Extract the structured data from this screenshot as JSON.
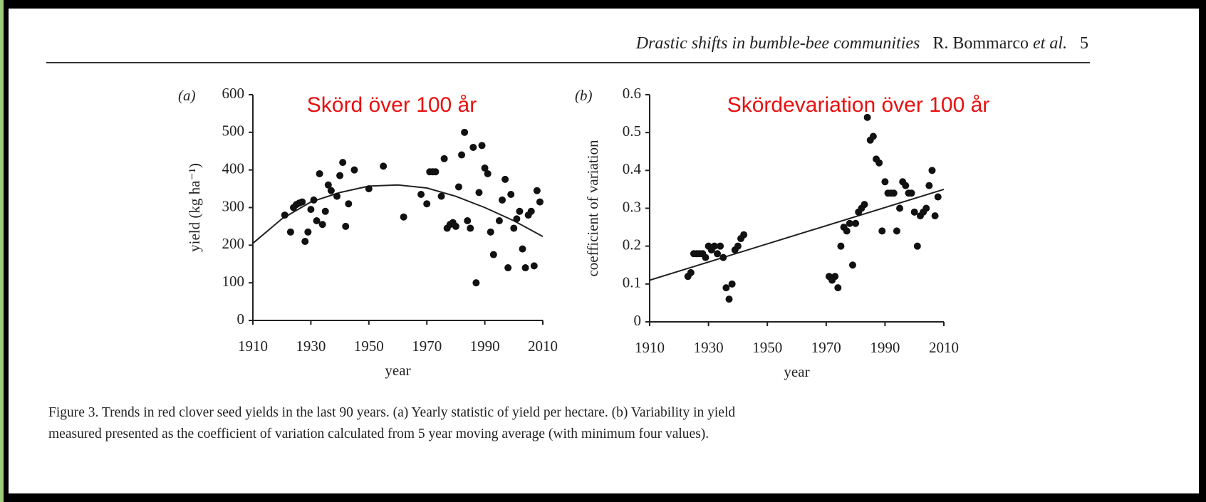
{
  "header": {
    "title": "Drastic shifts in bumble-bee communities",
    "author": "R. Bommarco",
    "etal": "et al.",
    "page": "5"
  },
  "caption": [
    "Figure 3. Trends in red clover seed yields in the last 90 years. (a) Yearly statistic of yield per hectare. (b) Variability in yield",
    "measured presented as the coefficient of variation calculated from 5 year moving average (with minimum four values)."
  ],
  "chart_data": [
    {
      "type": "scatter",
      "panel": "(a)",
      "title": "Skörd över 100 år",
      "title_color": "#e81010",
      "color": "#111",
      "xlabel": "year",
      "ylabel": "yield (kg ha⁻¹)",
      "xlim": [
        1910,
        2010
      ],
      "xticks": [
        1910,
        1930,
        1950,
        1970,
        1990,
        2010
      ],
      "ylim": [
        0,
        600
      ],
      "yticks": [
        0,
        100,
        200,
        300,
        400,
        500,
        600
      ],
      "x": [
        1921,
        1923,
        1924,
        1925,
        1926,
        1927,
        1928,
        1929,
        1930,
        1931,
        1932,
        1933,
        1934,
        1935,
        1936,
        1937,
        1939,
        1940,
        1941,
        1942,
        1943,
        1945,
        1950,
        1955,
        1962,
        1968,
        1970,
        1971,
        1972,
        1973,
        1975,
        1976,
        1977,
        1978,
        1979,
        1980,
        1981,
        1982,
        1983,
        1984,
        1985,
        1986,
        1987,
        1988,
        1989,
        1990,
        1991,
        1992,
        1993,
        1995,
        1996,
        1997,
        1998,
        1999,
        2000,
        2001,
        2002,
        2003,
        2004,
        2005,
        2006,
        2007,
        2008,
        2009
      ],
      "values": [
        280,
        235,
        300,
        308,
        312,
        315,
        210,
        235,
        295,
        320,
        265,
        390,
        255,
        290,
        360,
        345,
        330,
        385,
        420,
        250,
        310,
        400,
        350,
        410,
        275,
        335,
        310,
        395,
        395,
        395,
        330,
        430,
        245,
        255,
        260,
        250,
        355,
        440,
        500,
        265,
        245,
        460,
        100,
        340,
        465,
        405,
        390,
        235,
        175,
        265,
        320,
        375,
        140,
        335,
        245,
        270,
        290,
        190,
        140,
        280,
        290,
        145,
        345,
        315
      ],
      "trend": {
        "x": [
          1910,
          1920,
          1930,
          1940,
          1950,
          1960,
          1970,
          1980,
          1990,
          2000,
          2010
        ],
        "values": [
          205,
          270,
          315,
          340,
          357,
          360,
          352,
          330,
          300,
          265,
          223
        ]
      }
    },
    {
      "type": "scatter",
      "panel": "(b)",
      "title": "Skördevariation över 100 år",
      "title_color": "#e81010",
      "color": "#111",
      "xlabel": "year",
      "ylabel": "coefficient of variation",
      "xlim": [
        1910,
        2010
      ],
      "xticks": [
        1910,
        1930,
        1950,
        1970,
        1990,
        2010
      ],
      "ylim": [
        0,
        0.6
      ],
      "yticks": [
        0,
        0.1,
        0.2,
        0.3,
        0.4,
        0.5,
        0.6
      ],
      "x": [
        1923,
        1924,
        1925,
        1926,
        1927,
        1928,
        1929,
        1930,
        1931,
        1932,
        1933,
        1934,
        1935,
        1936,
        1937,
        1938,
        1939,
        1940,
        1941,
        1942,
        1971,
        1972,
        1973,
        1974,
        1975,
        1976,
        1977,
        1978,
        1979,
        1980,
        1981,
        1982,
        1983,
        1984,
        1985,
        1986,
        1987,
        1988,
        1989,
        1990,
        1991,
        1992,
        1993,
        1994,
        1995,
        1996,
        1997,
        1998,
        1999,
        2000,
        2001,
        2002,
        2003,
        2004,
        2005,
        2006,
        2007,
        2008
      ],
      "values": [
        0.12,
        0.13,
        0.18,
        0.18,
        0.18,
        0.18,
        0.17,
        0.2,
        0.19,
        0.2,
        0.18,
        0.2,
        0.17,
        0.09,
        0.06,
        0.1,
        0.19,
        0.2,
        0.22,
        0.23,
        0.12,
        0.11,
        0.12,
        0.09,
        0.2,
        0.25,
        0.24,
        0.26,
        0.15,
        0.26,
        0.29,
        0.3,
        0.31,
        0.54,
        0.48,
        0.49,
        0.43,
        0.42,
        0.24,
        0.37,
        0.34,
        0.34,
        0.34,
        0.24,
        0.3,
        0.37,
        0.36,
        0.34,
        0.34,
        0.29,
        0.2,
        0.28,
        0.29,
        0.3,
        0.36,
        0.4,
        0.28,
        0.33
      ],
      "trend": {
        "x": [
          1910,
          2010
        ],
        "values": [
          0.11,
          0.35
        ]
      }
    }
  ]
}
